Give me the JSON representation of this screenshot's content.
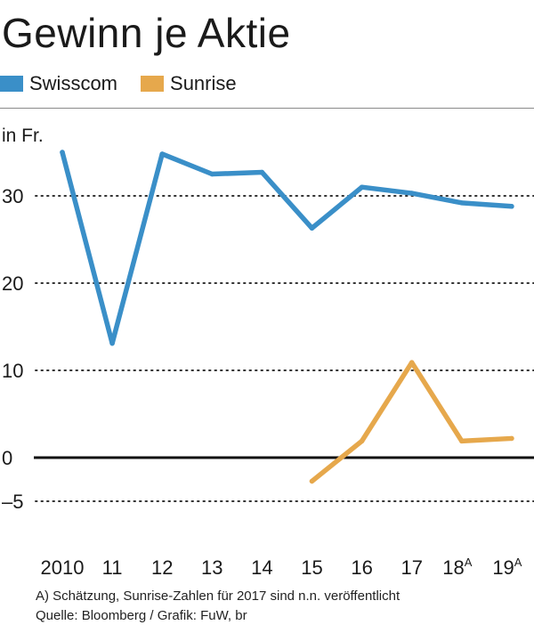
{
  "title": "Gewinn je Aktie",
  "unit": "in Fr.",
  "footnote": "A) Schätzung, Sunrise-Zahlen für 2017 sind n.n. veröffentlicht",
  "source": "Quelle: Bloomberg / Grafik: FuW, br",
  "colors": {
    "swisscom": "#3a8fc8",
    "sunrise": "#e6a84c",
    "zero_line": "#111111",
    "grid": "#333333"
  },
  "chart_data": {
    "type": "line",
    "title": "Gewinn je Aktie",
    "ylabel": "in Fr.",
    "xlabel": "",
    "ylim": [
      -5,
      35
    ],
    "grid": true,
    "yticks": [
      {
        "value": 30,
        "label": "30"
      },
      {
        "value": 20,
        "label": "20"
      },
      {
        "value": 10,
        "label": "10"
      },
      {
        "value": 0,
        "label": "0"
      },
      {
        "value": -5,
        "label": "–5"
      }
    ],
    "categories": [
      {
        "label": "2010",
        "sup": ""
      },
      {
        "label": "11",
        "sup": ""
      },
      {
        "label": "12",
        "sup": ""
      },
      {
        "label": "13",
        "sup": ""
      },
      {
        "label": "14",
        "sup": ""
      },
      {
        "label": "15",
        "sup": ""
      },
      {
        "label": "16",
        "sup": ""
      },
      {
        "label": "17",
        "sup": ""
      },
      {
        "label": "18",
        "sup": "A"
      },
      {
        "label": "19",
        "sup": "A"
      }
    ],
    "series": [
      {
        "name": "Swisscom",
        "color": "#3a8fc8",
        "values": [
          35.0,
          13.1,
          34.8,
          32.5,
          32.7,
          26.3,
          31.0,
          30.3,
          29.2,
          28.8
        ]
      },
      {
        "name": "Sunrise",
        "color": "#e6a84c",
        "values": [
          null,
          null,
          null,
          null,
          null,
          -2.7,
          1.9,
          10.9,
          1.9,
          2.2
        ]
      }
    ]
  }
}
